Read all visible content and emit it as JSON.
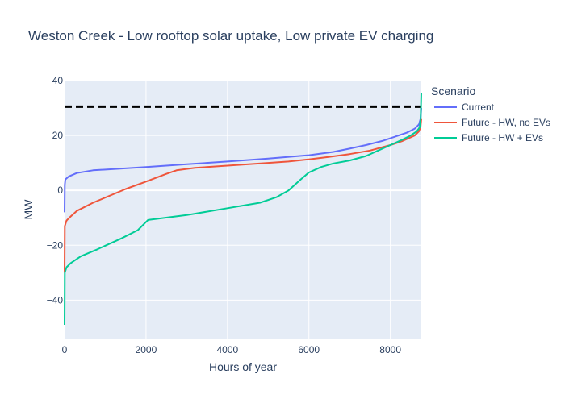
{
  "chart_data": {
    "type": "line",
    "title": "Weston Creek - Low rooftop solar uptake, Low private EV charging",
    "xlabel": "Hours of year",
    "ylabel": "MW",
    "xlim": [
      0,
      8760
    ],
    "ylim": [
      -54,
      40
    ],
    "xticks": [
      0,
      2000,
      4000,
      6000,
      8000
    ],
    "xtick_labels": [
      "0",
      "2000",
      "4000",
      "6000",
      "8000"
    ],
    "yticks": [
      -40,
      -20,
      0,
      20,
      40
    ],
    "ytick_labels": [
      "−40",
      "−20",
      "0",
      "20",
      "40"
    ],
    "grid": true,
    "reference_line": {
      "y": 30.5,
      "style": "dashed",
      "color": "#000000"
    },
    "legend": {
      "title": "Scenario",
      "position": "right"
    },
    "series": [
      {
        "name": "Current",
        "color": "#636efa",
        "points": [
          [
            0,
            -8
          ],
          [
            5,
            2
          ],
          [
            20,
            4
          ],
          [
            100,
            5
          ],
          [
            300,
            6.3
          ],
          [
            700,
            7.3
          ],
          [
            2000,
            8.5
          ],
          [
            3000,
            9.5
          ],
          [
            4000,
            10.5
          ],
          [
            5000,
            11.6
          ],
          [
            6000,
            12.8
          ],
          [
            6200,
            13.2
          ],
          [
            6600,
            14
          ],
          [
            7000,
            15.2
          ],
          [
            7400,
            16.5
          ],
          [
            7800,
            18
          ],
          [
            8100,
            19.5
          ],
          [
            8400,
            21
          ],
          [
            8600,
            22.5
          ],
          [
            8700,
            24
          ],
          [
            8740,
            26
          ],
          [
            8760,
            30
          ]
        ]
      },
      {
        "name": "Future - HW, no EVs",
        "color": "#ef553b",
        "points": [
          [
            0,
            -30
          ],
          [
            5,
            -13
          ],
          [
            50,
            -11
          ],
          [
            150,
            -9.5
          ],
          [
            300,
            -7.5
          ],
          [
            700,
            -4.5
          ],
          [
            1500,
            0.5
          ],
          [
            2000,
            3.2
          ],
          [
            2500,
            6
          ],
          [
            2750,
            7.3
          ],
          [
            3200,
            8.2
          ],
          [
            4000,
            9
          ],
          [
            5000,
            10
          ],
          [
            5500,
            10.5
          ],
          [
            6000,
            11.3
          ],
          [
            6500,
            12.2
          ],
          [
            7000,
            13.2
          ],
          [
            7500,
            14.5
          ],
          [
            8000,
            16.5
          ],
          [
            8300,
            18
          ],
          [
            8600,
            20
          ],
          [
            8700,
            21.5
          ],
          [
            8740,
            23
          ],
          [
            8760,
            26
          ]
        ]
      },
      {
        "name": "Future - HW + EVs",
        "color": "#00cc96",
        "points": [
          [
            0,
            -49
          ],
          [
            5,
            -30
          ],
          [
            50,
            -28
          ],
          [
            150,
            -26.5
          ],
          [
            400,
            -24
          ],
          [
            800,
            -21.5
          ],
          [
            1400,
            -17.5
          ],
          [
            1800,
            -14.5
          ],
          [
            2050,
            -10.8
          ],
          [
            3000,
            -9
          ],
          [
            4000,
            -6.5
          ],
          [
            4800,
            -4.5
          ],
          [
            5200,
            -2.5
          ],
          [
            5500,
            0
          ],
          [
            5800,
            4
          ],
          [
            6000,
            6.5
          ],
          [
            6300,
            8.5
          ],
          [
            6600,
            9.8
          ],
          [
            7000,
            10.9
          ],
          [
            7400,
            12.5
          ],
          [
            7700,
            14.5
          ],
          [
            8000,
            16.5
          ],
          [
            8300,
            18.5
          ],
          [
            8500,
            20
          ],
          [
            8650,
            21.5
          ],
          [
            8720,
            23
          ],
          [
            8745,
            26
          ],
          [
            8760,
            35.5
          ]
        ]
      }
    ]
  }
}
